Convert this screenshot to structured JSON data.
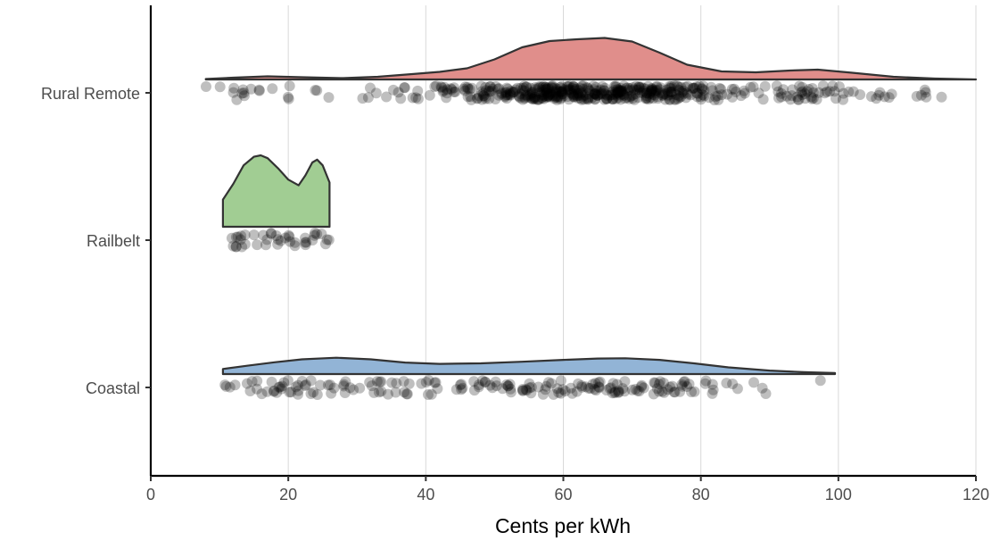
{
  "chart_data": {
    "type": "raincloud",
    "title": "",
    "xlabel": "Cents per kWh",
    "ylabel": "",
    "xlim": [
      0,
      120
    ],
    "xticks": [
      0,
      20,
      40,
      60,
      80,
      100,
      120
    ],
    "xtick_labels": [
      "0",
      "20",
      "40",
      "60",
      "80",
      "100",
      "120"
    ],
    "grid": "vertical major gridlines",
    "legend": "none",
    "categories": [
      "Rural Remote",
      "Railbelt",
      "Coastal"
    ],
    "series": [
      {
        "name": "Rural Remote",
        "color": "#e08e8b",
        "range": [
          8,
          120
        ],
        "density": [
          [
            8,
            0.01
          ],
          [
            12,
            0.04
          ],
          [
            17,
            0.07
          ],
          [
            22,
            0.05
          ],
          [
            28,
            0.03
          ],
          [
            33,
            0.06
          ],
          [
            38,
            0.12
          ],
          [
            42,
            0.17
          ],
          [
            46,
            0.25
          ],
          [
            50,
            0.45
          ],
          [
            54,
            0.72
          ],
          [
            58,
            0.86
          ],
          [
            62,
            0.9
          ],
          [
            66,
            0.93
          ],
          [
            70,
            0.85
          ],
          [
            74,
            0.6
          ],
          [
            78,
            0.33
          ],
          [
            83,
            0.18
          ],
          [
            88,
            0.16
          ],
          [
            93,
            0.2
          ],
          [
            97,
            0.22
          ],
          [
            102,
            0.15
          ],
          [
            108,
            0.06
          ],
          [
            114,
            0.02
          ],
          [
            120,
            0.0
          ]
        ],
        "points_note": "many jittered observations concentrated 40-100, sparse 8-37 and 100-120"
      },
      {
        "name": "Railbelt",
        "color": "#a1cd93",
        "range": [
          10.5,
          26
        ],
        "density": [
          [
            10.5,
            0.38
          ],
          [
            12,
            0.6
          ],
          [
            13.5,
            0.86
          ],
          [
            15,
            0.98
          ],
          [
            16,
            1.0
          ],
          [
            17,
            0.96
          ],
          [
            18.5,
            0.82
          ],
          [
            20,
            0.66
          ],
          [
            21.5,
            0.58
          ],
          [
            22.5,
            0.72
          ],
          [
            23.5,
            0.9
          ],
          [
            24.2,
            0.94
          ],
          [
            25,
            0.86
          ],
          [
            26,
            0.62
          ]
        ],
        "points_note": "about 40 observations between 10.5 and 26"
      },
      {
        "name": "Coastal",
        "color": "#92b4d6",
        "range": [
          10.5,
          99.5
        ],
        "density": [
          [
            10.5,
            0.19
          ],
          [
            14,
            0.31
          ],
          [
            18,
            0.44
          ],
          [
            22,
            0.55
          ],
          [
            27,
            0.61
          ],
          [
            32,
            0.55
          ],
          [
            37,
            0.43
          ],
          [
            42,
            0.38
          ],
          [
            48,
            0.4
          ],
          [
            54,
            0.46
          ],
          [
            60,
            0.53
          ],
          [
            65,
            0.58
          ],
          [
            69,
            0.59
          ],
          [
            74,
            0.53
          ],
          [
            79,
            0.4
          ],
          [
            84,
            0.25
          ],
          [
            90,
            0.13
          ],
          [
            95,
            0.07
          ],
          [
            99.5,
            0.04
          ]
        ],
        "points_note": "observations spread from 10.5 to 99.5 with clusters near 11-13, 27-30, 60-75"
      }
    ]
  }
}
